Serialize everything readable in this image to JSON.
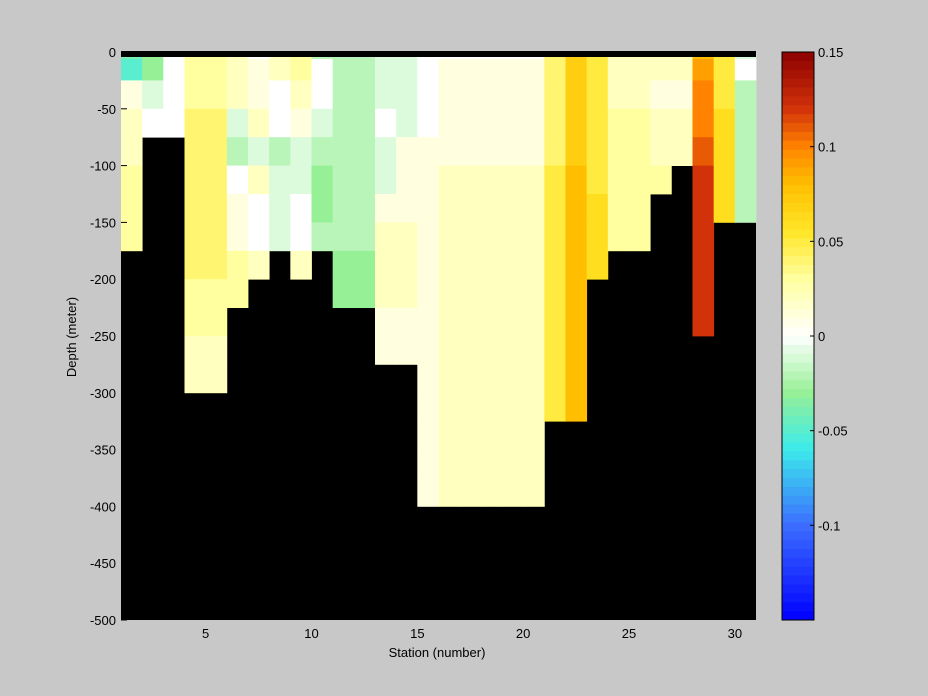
{
  "chart_data": {
    "type": "heatmap",
    "title": "",
    "xlabel": "Station (number)",
    "ylabel": "Depth (meter)",
    "xlim": [
      1,
      31
    ],
    "ylim": [
      -500,
      0
    ],
    "xticks": [
      5,
      10,
      15,
      20,
      25,
      30
    ],
    "yticks": [
      0,
      -50,
      -100,
      -150,
      -200,
      -250,
      -300,
      -350,
      -400,
      -450,
      -500
    ],
    "x_tick_labels": [
      "5",
      "10",
      "15",
      "20",
      "25",
      "30"
    ],
    "y_tick_labels": [
      "0",
      "-50",
      "-100",
      "-150",
      "-200",
      "-250",
      "-300",
      "-350",
      "-400",
      "-450",
      "-500"
    ],
    "depth_bins": [
      0,
      -12.5,
      -37.5,
      -62.5,
      -87.5,
      -112.5,
      -137.5,
      -162.5,
      -187.5,
      -212.5,
      -237.5,
      -262.5,
      -287.5,
      -312.5,
      -337.5,
      -362.5,
      -387.5,
      -412.5
    ],
    "stations": [
      1,
      2,
      3,
      4,
      5,
      6,
      7,
      8,
      9,
      10,
      11,
      12,
      13,
      14,
      15,
      16,
      17,
      18,
      19,
      20,
      21,
      22,
      23,
      24,
      25,
      26,
      27,
      28,
      29,
      30
    ],
    "values_by_station": [
      [
        -0.04,
        -0.05,
        0.01,
        0.02,
        0.02,
        0.03,
        0.03,
        0.03
      ],
      [
        -0.03,
        -0.03,
        -0.01,
        0.0
      ],
      [
        0.0,
        0.0,
        0.0,
        0.0
      ],
      [
        0.03,
        0.03,
        0.03,
        0.04,
        0.04,
        0.04,
        0.04,
        0.04,
        0.04,
        0.03,
        0.03,
        0.02,
        0.02
      ],
      [
        0.03,
        0.03,
        0.03,
        0.04,
        0.04,
        0.04,
        0.04,
        0.04,
        0.04,
        0.03,
        0.03,
        0.02,
        0.02
      ],
      [
        0.02,
        0.02,
        0.02,
        -0.01,
        -0.02,
        0.0,
        0.01,
        0.01,
        0.03,
        0.03
      ],
      [
        0.0,
        0.01,
        0.01,
        0.02,
        -0.01,
        0.02,
        0.0,
        0.0,
        0.02
      ],
      [
        0.02,
        0.02,
        0.0,
        0.0,
        -0.02,
        -0.01,
        -0.01,
        -0.01
      ],
      [
        0.03,
        0.03,
        0.02,
        0.01,
        -0.01,
        -0.01,
        0.0,
        0.0,
        0.02
      ],
      [
        -0.02,
        0.0,
        0.0,
        -0.01,
        -0.02,
        -0.03,
        -0.03,
        -0.02
      ],
      [
        -0.02,
        -0.02,
        -0.02,
        -0.02,
        -0.02,
        -0.02,
        -0.02,
        -0.02,
        -0.03,
        -0.03
      ],
      [
        -0.02,
        -0.02,
        -0.02,
        -0.02,
        -0.02,
        -0.02,
        -0.02,
        -0.02,
        -0.03,
        -0.03
      ],
      [
        -0.01,
        -0.01,
        -0.01,
        0.0,
        -0.01,
        -0.01,
        0.01,
        0.02,
        0.02,
        0.02,
        0.01,
        0.01
      ],
      [
        -0.01,
        -0.01,
        -0.01,
        -0.01,
        0.01,
        0.01,
        0.01,
        0.02,
        0.02,
        0.02,
        0.01,
        0.01
      ],
      [
        0.0,
        0.0,
        0.0,
        0.0,
        0.01,
        0.01,
        0.01,
        0.01,
        0.01,
        0.01,
        0.01,
        0.01,
        0.01,
        0.01,
        0.01,
        0.01,
        0.01
      ],
      [
        0.0,
        0.01,
        0.01,
        0.01,
        0.01,
        0.02,
        0.02,
        0.02,
        0.02,
        0.02,
        0.02,
        0.02,
        0.02,
        0.02,
        0.02,
        0.02,
        0.02
      ],
      [
        0.0,
        0.01,
        0.01,
        0.01,
        0.01,
        0.02,
        0.02,
        0.02,
        0.02,
        0.02,
        0.02,
        0.02,
        0.02,
        0.02,
        0.02,
        0.02,
        0.02
      ],
      [
        0.0,
        0.01,
        0.01,
        0.01,
        0.01,
        0.02,
        0.02,
        0.02,
        0.02,
        0.02,
        0.02,
        0.02,
        0.02,
        0.02,
        0.02,
        0.02,
        0.02
      ],
      [
        0.0,
        0.01,
        0.01,
        0.01,
        0.01,
        0.02,
        0.02,
        0.02,
        0.02,
        0.02,
        0.02,
        0.02,
        0.02,
        0.02,
        0.02,
        0.02,
        0.02
      ],
      [
        0.0,
        0.01,
        0.01,
        0.01,
        0.01,
        0.02,
        0.02,
        0.02,
        0.02,
        0.02,
        0.02,
        0.02,
        0.02,
        0.02,
        0.02,
        0.02,
        0.02
      ],
      [
        0.04,
        0.04,
        0.04,
        0.04,
        0.04,
        0.05,
        0.05,
        0.05,
        0.05,
        0.05,
        0.05,
        0.05,
        0.05,
        0.05
      ],
      [
        0.07,
        0.07,
        0.07,
        0.07,
        0.07,
        0.08,
        0.08,
        0.08,
        0.08,
        0.08,
        0.08,
        0.08,
        0.08,
        0.08
      ],
      [
        0.05,
        0.05,
        0.05,
        0.05,
        0.05,
        0.05,
        0.06,
        0.06,
        0.06
      ],
      [
        0.02,
        0.02,
        0.02,
        0.03,
        0.03,
        0.03,
        0.03,
        0.03
      ],
      [
        0.02,
        0.02,
        0.02,
        0.03,
        0.03,
        0.03,
        0.03,
        0.03
      ],
      [
        0.02,
        0.02,
        0.01,
        0.02,
        0.02,
        0.03
      ],
      [
        0.02,
        0.02,
        0.01,
        0.02,
        0.02
      ],
      [
        0.08,
        0.09,
        0.1,
        0.1,
        0.11,
        0.12,
        0.12,
        0.12,
        0.12,
        0.12,
        0.12
      ],
      [
        0.05,
        0.05,
        0.05,
        0.06,
        0.06,
        0.06,
        0.06
      ],
      [
        -0.01,
        0.0,
        -0.02,
        -0.02,
        -0.02,
        -0.02,
        -0.02
      ]
    ],
    "colorbar": {
      "min": -0.15,
      "max": 0.15,
      "ticks": [
        -0.1,
        -0.05,
        0,
        0.05,
        0.1,
        0.15
      ],
      "tick_labels": [
        "-0.1",
        "-0.05",
        "0",
        "0.05",
        "0.1",
        "0.15"
      ],
      "colormap": "blue-cyan-green-white-yellow-orange-red (jet-like, white at 0)"
    },
    "background_color": "#000000",
    "grid": false
  },
  "colors": {
    "figure_background": "#c8c8c8",
    "axes_background": "#000000"
  }
}
